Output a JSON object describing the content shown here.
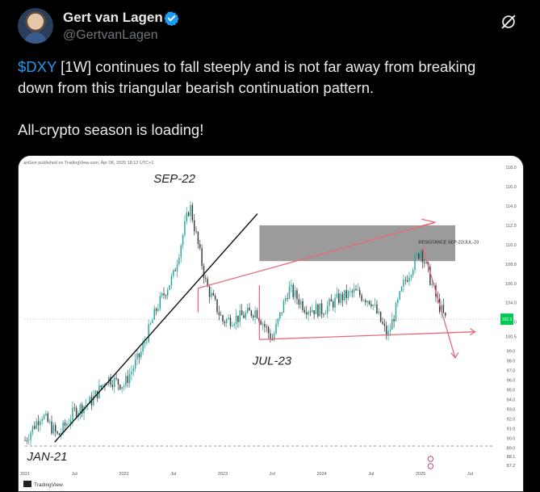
{
  "author": {
    "name": "Gert van Lagen",
    "handle": "@GertvanLagen",
    "verified": true,
    "avatar_icon": "avatar-photo"
  },
  "icons": {
    "verified": "verified-badge-icon",
    "grok": "grok-slash-icon",
    "more": "more-icon"
  },
  "colors": {
    "cashtag": "#1d9bf0",
    "verified": "#1d9bf0",
    "background": "#000000",
    "text": "#e7e9ea",
    "muted": "#71767b",
    "candle_up": "#26a69a",
    "candle_down": "#3b3b3b",
    "annotation_red": "#e8697a",
    "trendline": "#111111",
    "resistance_box": "#8a8a8a",
    "price_tag": "#00c853"
  },
  "tweet": {
    "cashtag": "$DXY",
    "line1_rest": " [1W] continues to fall steeply and is not far away from breaking",
    "line2": "down from this triangular bearish continuation pattern.",
    "line3": "All-crypto season is loading!"
  },
  "chart_data": {
    "type": "line",
    "title": "",
    "header_text": "anGert published on TradingView.com, Apr 08, 2025 18:12 UTC+1",
    "watermark": "TradingView",
    "instrument": "DXY",
    "timeframe": "1W",
    "x_tick_labels": [
      "2021",
      "Jul",
      "2022",
      "Jul",
      "2023",
      "Jul",
      "2024",
      "Jul",
      "2025",
      "Jul"
    ],
    "y_tick_labels": [
      "118.0",
      "116.0",
      "114.0",
      "112.0",
      "110.0",
      "108.0",
      "106.0",
      "104.0",
      "102.0",
      "100.5",
      "99.0",
      "98.0",
      "97.0",
      "96.0",
      "95.0",
      "94.0",
      "93.0",
      "92.0",
      "91.0",
      "90.0",
      "89.0",
      "88.1",
      "87.2"
    ],
    "current_price_tag": "102.3",
    "annotations": {
      "peak": "SEP-22",
      "low_2023": "JUL-23",
      "low_2021": "JAN-21",
      "resistance": "RESISTANCE SEP-22/JUL-23"
    },
    "series": [
      {
        "x": [
          "2021-01",
          "2021-03",
          "2021-05",
          "2021-07",
          "2021-09",
          "2021-11",
          "2022-01",
          "2022-03",
          "2022-05",
          "2022-07",
          "2022-09",
          "2022-11",
          "2023-01",
          "2023-03",
          "2023-05",
          "2023-07",
          "2023-09",
          "2023-11",
          "2024-01",
          "2024-03",
          "2024-05",
          "2024-07",
          "2024-09",
          "2024-11",
          "2025-01",
          "2025-03",
          "2025-04"
        ],
        "values": [
          89.8,
          92.5,
          90.2,
          92.8,
          93.8,
          96.2,
          95.5,
          98.7,
          103.5,
          106.8,
          114.1,
          105.8,
          102.1,
          102.5,
          103.2,
          100.2,
          105.5,
          103.5,
          103.2,
          104.4,
          105.1,
          104.2,
          100.5,
          106.1,
          109.5,
          104.2,
          102.3
        ]
      }
    ]
  }
}
